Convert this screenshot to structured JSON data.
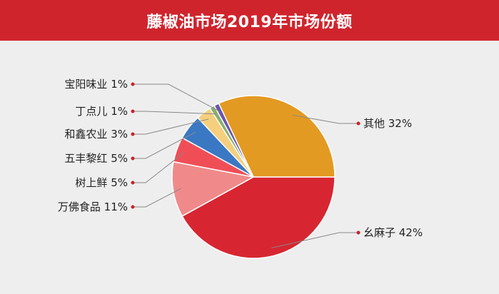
{
  "header": {
    "title": "藤椒油市场2019年市场份额"
  },
  "chart_data": {
    "type": "pie",
    "title": "藤椒油市场2019年市场份额",
    "slices": [
      {
        "name": "幺麻子",
        "value": 42,
        "label": "幺麻子 42%",
        "color": "#d72632"
      },
      {
        "name": "万佛食品",
        "value": 11,
        "label": "万佛食品 11%",
        "color": "#f08a8a"
      },
      {
        "name": "树上鲜",
        "value": 5,
        "label": "树上鲜 5%",
        "color": "#ef4e57"
      },
      {
        "name": "五丰黎红",
        "value": 5,
        "label": "五丰黎红 5%",
        "color": "#3a78c4"
      },
      {
        "name": "和鑫农业",
        "value": 3,
        "label": "和鑫农业 3%",
        "color": "#f5cf7d"
      },
      {
        "name": "丁点儿",
        "value": 1,
        "label": "丁点儿 1%",
        "color": "#8ab06a"
      },
      {
        "name": "宝阳味业",
        "value": 1,
        "label": "宝阳味业 1%",
        "color": "#6a55b0"
      },
      {
        "name": "其他",
        "value": 32,
        "label": "其他 32%",
        "color": "#e39a22"
      }
    ],
    "legend": "none"
  },
  "colors": {
    "title_bar": "#d0242d",
    "leader_dot": "#c8232c",
    "leader_line": "#888888",
    "background": "#eeeeee"
  }
}
